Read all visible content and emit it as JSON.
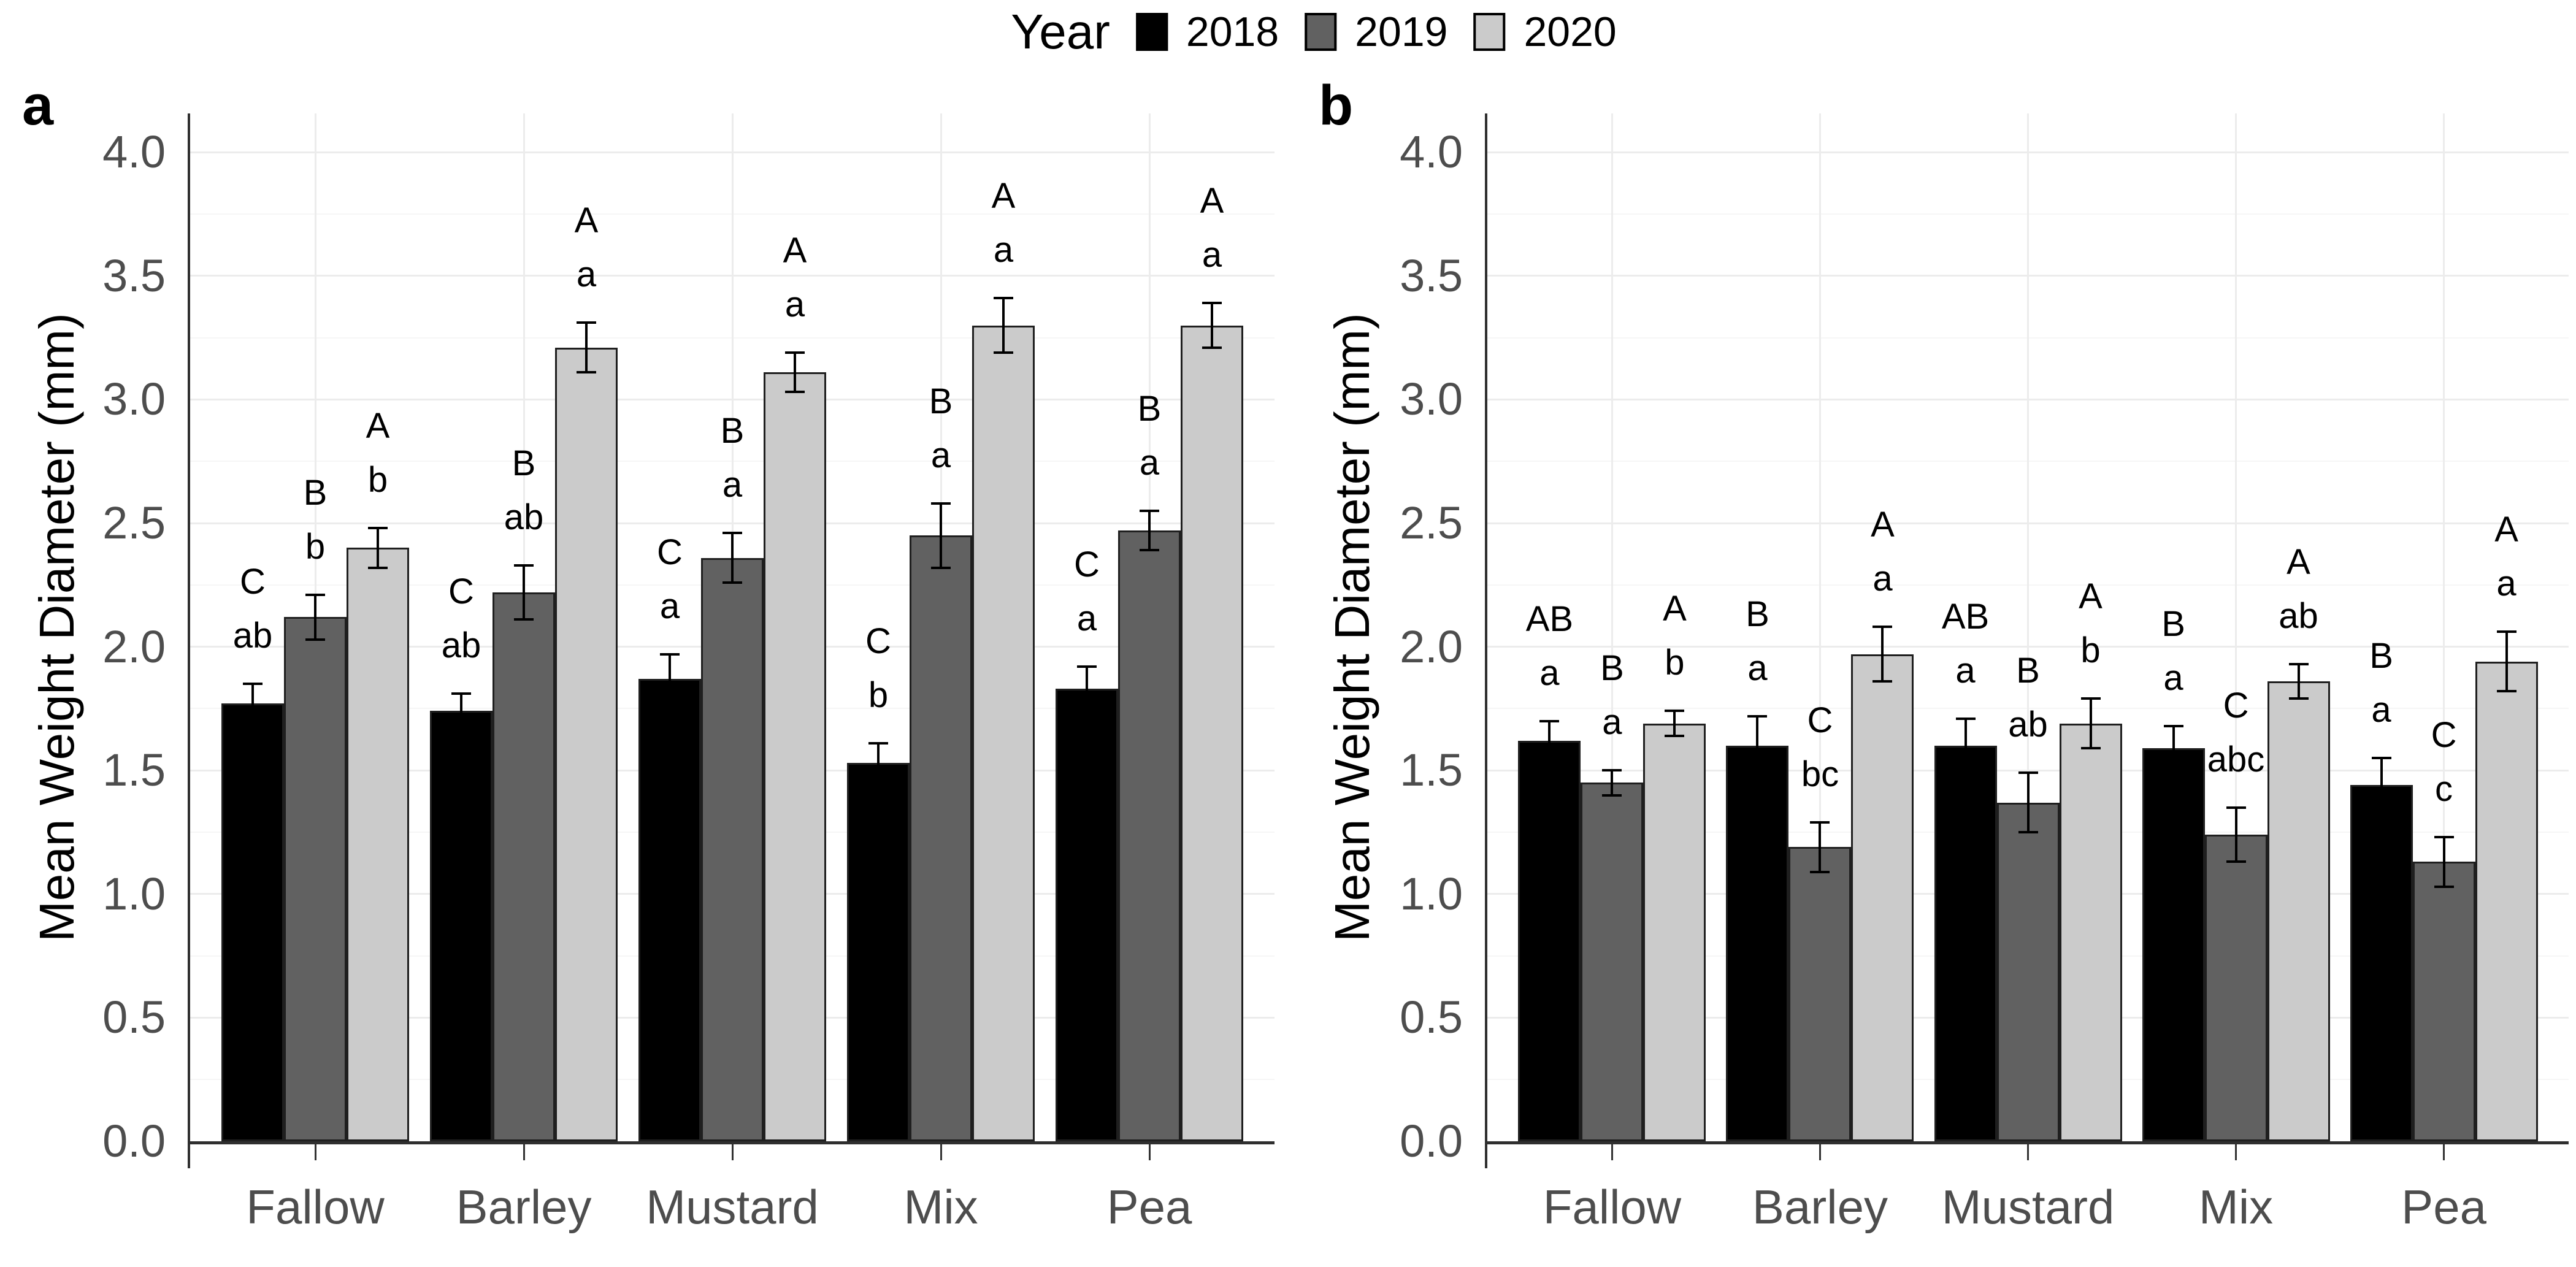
{
  "legend": {
    "title": "Year",
    "items": [
      {
        "label": "2018",
        "color": "#000000"
      },
      {
        "label": "2019",
        "color": "#616161"
      },
      {
        "label": "2020",
        "color": "#cbcbcb"
      }
    ]
  },
  "panels": [
    {
      "letter": "a",
      "y_axis_title": "Mean Weight Diameter (mm)"
    },
    {
      "letter": "b",
      "y_axis_title": "Mean Weight Diameter (mm)"
    }
  ],
  "y_tick_labels": [
    "0.0",
    "0.5",
    "1.0",
    "1.5",
    "2.0",
    "2.5",
    "3.0",
    "3.5",
    "4.0"
  ],
  "categories": [
    "Fallow",
    "Barley",
    "Mustard",
    "Mix",
    "Pea"
  ],
  "chart_data": [
    {
      "type": "bar",
      "panel": "a",
      "title": "",
      "xlabel": "",
      "ylabel": "Mean Weight Diameter (mm)",
      "ylim": [
        0,
        4.0
      ],
      "y_tick_step": 0.5,
      "grid": true,
      "legend_position": "top",
      "categories": [
        "Fallow",
        "Barley",
        "Mustard",
        "Mix",
        "Pea"
      ],
      "series": [
        {
          "name": "2018",
          "color": "#000000",
          "values": [
            1.77,
            1.74,
            1.87,
            1.53,
            1.83
          ],
          "errors": [
            0.08,
            0.07,
            0.1,
            0.08,
            0.09
          ],
          "letters": [
            [
              "C",
              "ab"
            ],
            [
              "C",
              "ab"
            ],
            [
              "C",
              "a"
            ],
            [
              "C",
              "b"
            ],
            [
              "C",
              "a"
            ]
          ]
        },
        {
          "name": "2019",
          "color": "#616161",
          "values": [
            2.12,
            2.22,
            2.36,
            2.45,
            2.47
          ],
          "errors": [
            0.09,
            0.11,
            0.1,
            0.13,
            0.08
          ],
          "letters": [
            [
              "B",
              "b"
            ],
            [
              "B",
              "ab"
            ],
            [
              "B",
              "a"
            ],
            [
              "B",
              "a"
            ],
            [
              "B",
              "a"
            ]
          ]
        },
        {
          "name": "2020",
          "color": "#cbcbcb",
          "values": [
            2.4,
            3.21,
            3.11,
            3.3,
            3.3
          ],
          "errors": [
            0.08,
            0.1,
            0.08,
            0.11,
            0.09
          ],
          "letters": [
            [
              "A",
              "b"
            ],
            [
              "A",
              "a"
            ],
            [
              "A",
              "a"
            ],
            [
              "A",
              "a"
            ],
            [
              "A",
              "a"
            ]
          ]
        }
      ]
    },
    {
      "type": "bar",
      "panel": "b",
      "title": "",
      "xlabel": "",
      "ylabel": "Mean Weight Diameter (mm)",
      "ylim": [
        0,
        4.0
      ],
      "y_tick_step": 0.5,
      "grid": true,
      "legend_position": "top",
      "categories": [
        "Fallow",
        "Barley",
        "Mustard",
        "Mix",
        "Pea"
      ],
      "series": [
        {
          "name": "2018",
          "color": "#000000",
          "values": [
            1.62,
            1.6,
            1.6,
            1.59,
            1.44
          ],
          "errors": [
            0.08,
            0.12,
            0.11,
            0.09,
            0.11
          ],
          "letters": [
            [
              "AB",
              "a"
            ],
            [
              "B",
              "a"
            ],
            [
              "AB",
              "a"
            ],
            [
              "B",
              "a"
            ],
            [
              "B",
              "a"
            ]
          ]
        },
        {
          "name": "2019",
          "color": "#616161",
          "values": [
            1.45,
            1.19,
            1.37,
            1.24,
            1.13
          ],
          "errors": [
            0.05,
            0.1,
            0.12,
            0.11,
            0.1
          ],
          "letters": [
            [
              "B",
              "a"
            ],
            [
              "C",
              "bc"
            ],
            [
              "B",
              "ab"
            ],
            [
              "C",
              "abc"
            ],
            [
              "C",
              "c"
            ]
          ]
        },
        {
          "name": "2020",
          "color": "#cbcbcb",
          "values": [
            1.69,
            1.97,
            1.69,
            1.86,
            1.94
          ],
          "errors": [
            0.05,
            0.11,
            0.1,
            0.07,
            0.12
          ],
          "letters": [
            [
              "A",
              "b"
            ],
            [
              "A",
              "a"
            ],
            [
              "A",
              "b"
            ],
            [
              "A",
              "ab"
            ],
            [
              "A",
              "a"
            ]
          ]
        }
      ]
    }
  ],
  "colors": {
    "axis": "#2f2f2f",
    "tick_label": "#4d4d4d",
    "grid_major": "#ececec",
    "grid_minor": "#f6f6f6",
    "bar_border": "#1f1f1f",
    "error_bar": "#000000",
    "background": "#ffffff"
  }
}
